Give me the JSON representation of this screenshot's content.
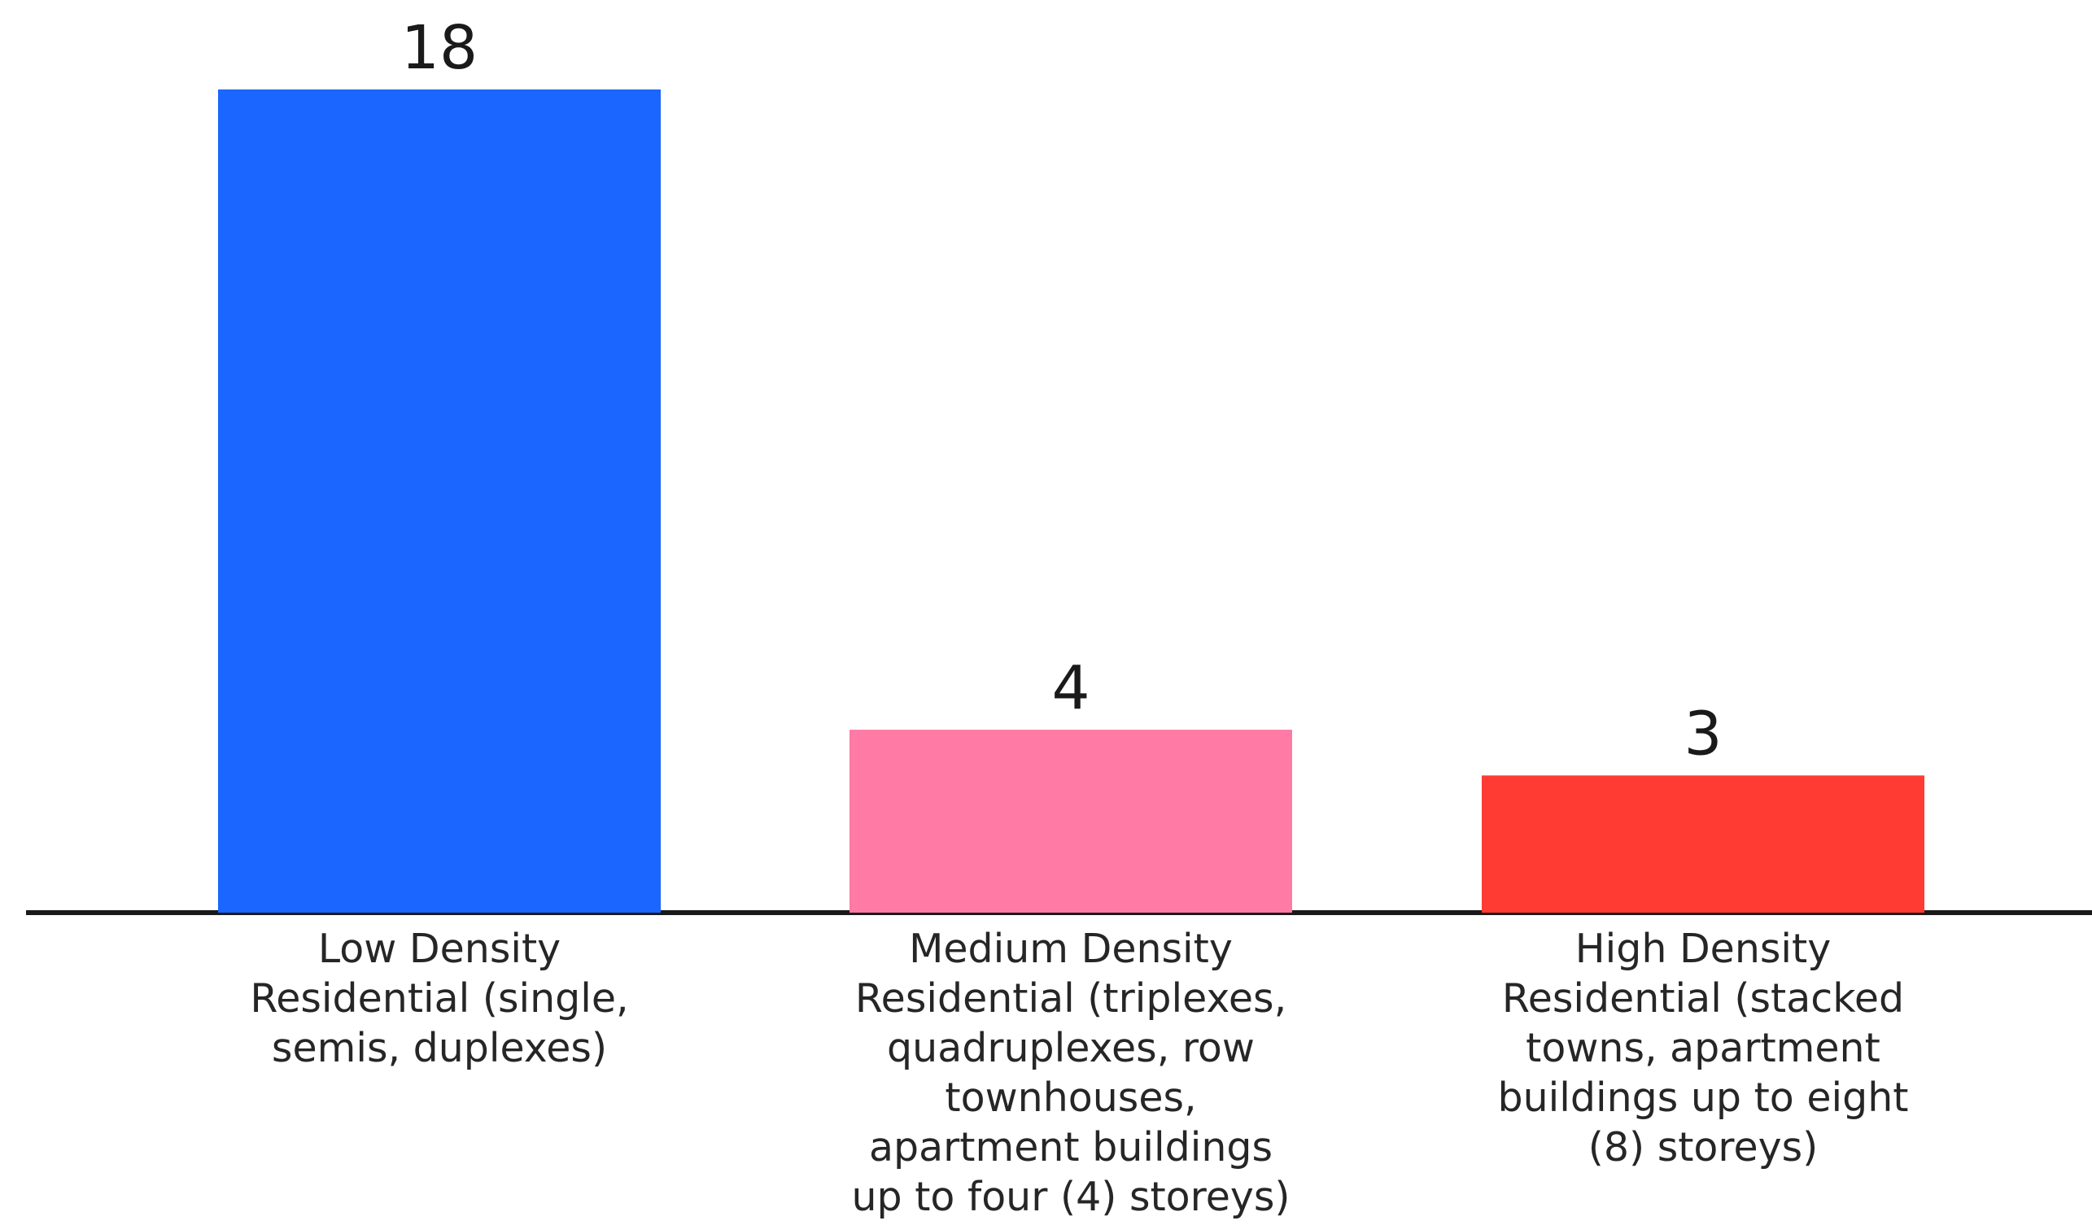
{
  "chart_data": {
    "type": "bar",
    "title": "",
    "xlabel": "",
    "ylabel": "",
    "ylim": [
      0,
      18
    ],
    "grid": false,
    "legend": "none",
    "categories": [
      "Low Density Residential (single, semis, duplexes)",
      "Medium Density Residential (triplexes, quadruplexes, row townhouses, apartment buildings up to four (4) storeys)",
      "High Density Residential (stacked towns, apartment buildings up to eight (8) storeys)"
    ],
    "category_lines": [
      [
        "Low Density",
        "Residential (single,",
        "semis, duplexes)"
      ],
      [
        "Medium Density",
        "Residential (triplexes,",
        "quadruplexes, row",
        "townhouses,",
        "apartment buildings",
        "up to four (4) storeys)"
      ],
      [
        "High Density",
        "Residential (stacked",
        "towns, apartment",
        "buildings up to eight",
        "(8) storeys)"
      ]
    ],
    "values": [
      18,
      4,
      3
    ],
    "data_labels": [
      "18",
      "4",
      "3"
    ],
    "colors": [
      "#1a66ff",
      "#ff7aa5",
      "#ff3b33"
    ],
    "axis_color": "#1a1a1a"
  }
}
